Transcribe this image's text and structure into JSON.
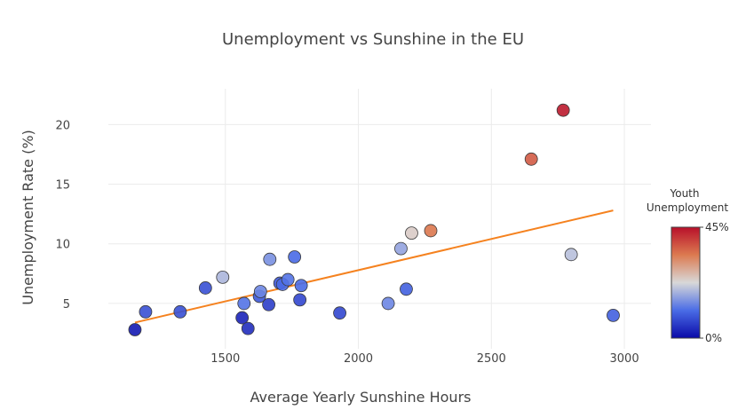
{
  "chart_data": {
    "type": "scatter",
    "title": "Unemployment vs Sunshine in the EU",
    "xlabel": "Average Yearly Sunshine Hours",
    "ylabel": "Unemployment Rate (%)",
    "xlim": [
      1060,
      3100
    ],
    "ylim": [
      1.2,
      23.0
    ],
    "xticks": [
      1500,
      2000,
      2500,
      3000
    ],
    "yticks": [
      5,
      10,
      15,
      20
    ],
    "grid": true,
    "colorbar": {
      "title_lines": [
        "Youth",
        "Unemployment"
      ],
      "min_label": "0%",
      "max_label": "45%",
      "range": [
        0,
        45
      ],
      "colors": [
        "#0a0aa8",
        "#4a6ce6",
        "#d8d8d8",
        "#dc7a50",
        "#b8102a"
      ]
    },
    "points": [
      {
        "x": 1160,
        "y": 2.8,
        "c": 2
      },
      {
        "x": 1200,
        "y": 4.3,
        "c": 8
      },
      {
        "x": 1330,
        "y": 4.3,
        "c": 8
      },
      {
        "x": 1425,
        "y": 6.3,
        "c": 8
      },
      {
        "x": 1490,
        "y": 7.2,
        "c": 19
      },
      {
        "x": 1563,
        "y": 3.8,
        "c": 3
      },
      {
        "x": 1570,
        "y": 5.0,
        "c": 12
      },
      {
        "x": 1585,
        "y": 2.9,
        "c": 4
      },
      {
        "x": 1628,
        "y": 5.6,
        "c": 9
      },
      {
        "x": 1632,
        "y": 6.0,
        "c": 14
      },
      {
        "x": 1663,
        "y": 4.9,
        "c": 6
      },
      {
        "x": 1667,
        "y": 8.7,
        "c": 15
      },
      {
        "x": 1705,
        "y": 6.7,
        "c": 9
      },
      {
        "x": 1715,
        "y": 6.6,
        "c": 11
      },
      {
        "x": 1735,
        "y": 7.0,
        "c": 12
      },
      {
        "x": 1760,
        "y": 8.9,
        "c": 11
      },
      {
        "x": 1780,
        "y": 5.3,
        "c": 7
      },
      {
        "x": 1785,
        "y": 6.5,
        "c": 11
      },
      {
        "x": 1930,
        "y": 4.2,
        "c": 7
      },
      {
        "x": 2112,
        "y": 5.0,
        "c": 14
      },
      {
        "x": 2160,
        "y": 9.6,
        "c": 17
      },
      {
        "x": 2180,
        "y": 6.2,
        "c": 10
      },
      {
        "x": 2200,
        "y": 10.9,
        "c": 24
      },
      {
        "x": 2272,
        "y": 11.1,
        "c": 34
      },
      {
        "x": 2650,
        "y": 17.1,
        "c": 37
      },
      {
        "x": 2770,
        "y": 21.2,
        "c": 44
      },
      {
        "x": 2800,
        "y": 9.1,
        "c": 20
      },
      {
        "x": 2958,
        "y": 4.0,
        "c": 10
      }
    ],
    "trendline": {
      "color": "#f5821f",
      "from": {
        "x": 1160,
        "y": 3.4
      },
      "to": {
        "x": 2958,
        "y": 12.8
      }
    }
  }
}
